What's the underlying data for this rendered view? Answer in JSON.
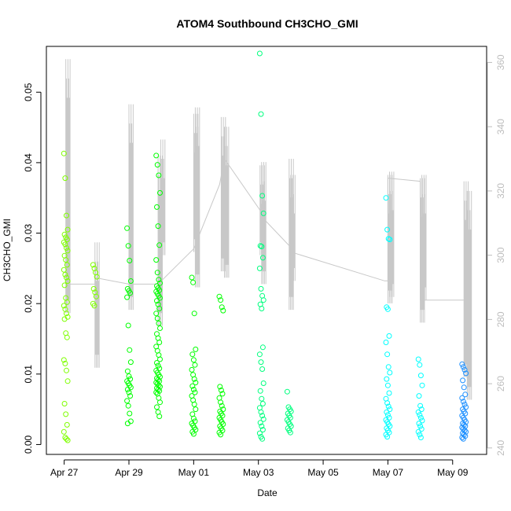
{
  "chart_data": {
    "type": "scatter",
    "title": "ATOM4 Southbound CH3CHO_GMI",
    "xlabel": "Date",
    "ylabel": "CH3CHO_GMI",
    "y2label": "",
    "x_tick_labels": [
      "Apr 27",
      "Apr 29",
      "May 01",
      "May 03",
      "May 05",
      "May 07",
      "May 09"
    ],
    "x_tick_days": [
      0,
      2,
      4,
      6,
      8,
      10,
      12
    ],
    "xlim_days": [
      -0.55,
      13.05
    ],
    "ylim": [
      -0.0014,
      0.0565
    ],
    "y_ticks": [
      0.0,
      0.01,
      0.02,
      0.03,
      0.04,
      0.05
    ],
    "y_tick_labels": [
      "0.00",
      "0.01",
      "0.02",
      "0.03",
      "0.04",
      "0.05"
    ],
    "y2lim": [
      238,
      365
    ],
    "y2_ticks": [
      240,
      260,
      280,
      300,
      320,
      340,
      360
    ],
    "y2_tick_labels": [
      "240",
      "260",
      "280",
      "300",
      "320",
      "340",
      "360"
    ],
    "grid": false,
    "legend": "none",
    "colors": {
      "marker_colors": [
        "#7fff00",
        "#00ff00",
        "#00ff7f",
        "#00ffff",
        "#1e90ff"
      ],
      "secondary_line": "#c8c8c8",
      "axis": "#000000",
      "right_axis": "#bdbdbd"
    },
    "series": [
      {
        "day": 0.05,
        "color": "#7fff00",
        "values": [
          0.0413,
          0.0378,
          0.0325,
          0.0305,
          0.0298,
          0.0294,
          0.0291,
          0.0287,
          0.0284,
          0.0279,
          0.0275,
          0.0268,
          0.0262,
          0.0255,
          0.0248,
          0.0241,
          0.0237,
          0.0232,
          0.0226,
          0.0208,
          0.0202,
          0.0197,
          0.0192,
          0.0186,
          0.0181,
          0.0178,
          0.0158,
          0.0152,
          0.012,
          0.0115,
          0.0105,
          0.009,
          0.0058,
          0.0043,
          0.0028,
          0.0018,
          0.001,
          0.0008,
          0.0006
        ]
      },
      {
        "day": 0.95,
        "color": "#7fff00",
        "values": [
          0.0255,
          0.025,
          0.0244,
          0.0238,
          0.0221,
          0.0216,
          0.021,
          0.02,
          0.0197
        ]
      },
      {
        "day": 2.0,
        "color": "#00ff00",
        "values": [
          0.0307,
          0.0282,
          0.0261,
          0.0232,
          0.0221,
          0.0218,
          0.0215,
          0.0209,
          0.0169,
          0.0134,
          0.0117,
          0.0104,
          0.0097,
          0.0093,
          0.009,
          0.0087,
          0.0084,
          0.0081,
          0.0078,
          0.0074,
          0.0069,
          0.0062,
          0.0055,
          0.0044,
          0.0033,
          0.003
        ]
      },
      {
        "day": 2.9,
        "color": "#00ff00",
        "values": [
          0.041,
          0.0397,
          0.0382,
          0.0357,
          0.0337,
          0.031,
          0.0283,
          0.0262,
          0.0244,
          0.0234,
          0.0229,
          0.0225,
          0.0222,
          0.0219,
          0.0217,
          0.0214,
          0.0211,
          0.0208,
          0.0204,
          0.0199,
          0.0193,
          0.0186,
          0.0179,
          0.0172,
          0.0165,
          0.0157,
          0.0151,
          0.0145,
          0.0139,
          0.0133,
          0.0127,
          0.0121,
          0.0116,
          0.0112,
          0.0108,
          0.0105,
          0.0102,
          0.0099,
          0.0096,
          0.0094,
          0.0092,
          0.009,
          0.0088,
          0.0086,
          0.0084,
          0.0082,
          0.008,
          0.0078,
          0.0076,
          0.0074,
          0.0072,
          0.0066,
          0.006,
          0.0053,
          0.0046,
          0.004
        ]
      },
      {
        "day": 4.0,
        "color": "#00ff00",
        "values": [
          0.0237,
          0.023,
          0.0186,
          0.0135,
          0.0128,
          0.012,
          0.0113,
          0.0106,
          0.0099,
          0.0093,
          0.0088,
          0.0083,
          0.0078,
          0.0074,
          0.0069,
          0.0063,
          0.0057,
          0.005,
          0.0043,
          0.0037,
          0.0033,
          0.003,
          0.0027,
          0.0024,
          0.0021,
          0.0018,
          0.0015
        ]
      },
      {
        "day": 4.85,
        "color": "#00ff00",
        "values": [
          0.021,
          0.0205,
          0.0195,
          0.019,
          0.0082,
          0.0077,
          0.0072,
          0.0066,
          0.006,
          0.0055,
          0.005,
          0.0047,
          0.0044,
          0.0041,
          0.0038,
          0.0035,
          0.0032,
          0.0029,
          0.0026,
          0.0023,
          0.002,
          0.0017,
          0.0014
        ]
      },
      {
        "day": 6.1,
        "color": "#00ff7f",
        "values": [
          0.0555,
          0.0469,
          0.0353,
          0.0328,
          0.0282,
          0.0281,
          0.0265,
          0.025,
          0.0221,
          0.0211,
          0.0205,
          0.0199,
          0.0193,
          0.0138,
          0.0128,
          0.0117,
          0.0107,
          0.0087,
          0.0076,
          0.0065,
          0.0058,
          0.0052,
          0.0046,
          0.0041,
          0.0036,
          0.0031,
          0.0026,
          0.0021,
          0.0016,
          0.0011,
          0.0008
        ]
      },
      {
        "day": 6.95,
        "color": "#00ff7f",
        "values": [
          0.0075,
          0.0053,
          0.005,
          0.0047,
          0.0044,
          0.0041,
          0.0038,
          0.0035,
          0.0032,
          0.0029,
          0.0026,
          0.0023,
          0.002,
          0.0017
        ]
      },
      {
        "day": 10.0,
        "color": "#00ffff",
        "values": [
          0.035,
          0.0305,
          0.0292,
          0.0291,
          0.0195,
          0.0192,
          0.0154,
          0.0145,
          0.0128,
          0.011,
          0.0102,
          0.0093,
          0.0084,
          0.0073,
          0.0065,
          0.0059,
          0.0054,
          0.005,
          0.0046,
          0.0042,
          0.0038,
          0.0035,
          0.0032,
          0.0029,
          0.0026,
          0.0023,
          0.002,
          0.0017,
          0.0014,
          0.0011
        ]
      },
      {
        "day": 11.0,
        "color": "#00ffff",
        "values": [
          0.0121,
          0.0113,
          0.0098,
          0.0084,
          0.0069,
          0.0055,
          0.005,
          0.0046,
          0.0042,
          0.0038,
          0.0034,
          0.003,
          0.0026,
          0.0022,
          0.0018,
          0.0014,
          0.001
        ]
      },
      {
        "day": 12.35,
        "color": "#1e90ff",
        "values": [
          0.0114,
          0.011,
          0.0106,
          0.0101,
          0.0091,
          0.0081,
          0.0071,
          0.0066,
          0.0061,
          0.0057,
          0.0053,
          0.005,
          0.0047,
          0.0044,
          0.0041,
          0.0038,
          0.0035,
          0.0032,
          0.003,
          0.0028,
          0.0026,
          0.0024,
          0.0022,
          0.002,
          0.0018,
          0.0016,
          0.0014,
          0.0012,
          0.001,
          0.0008
        ]
      }
    ],
    "secondary_line": {
      "y_axis": "right",
      "points": [
        [
          0.05,
          282
        ],
        [
          0.1,
          291
        ],
        [
          0.95,
          291
        ],
        [
          0.95,
          293
        ],
        [
          2.0,
          291
        ],
        [
          2.9,
          291
        ],
        [
          3.0,
          292
        ],
        [
          4.0,
          302
        ],
        [
          4.8,
          322
        ],
        [
          4.95,
          330
        ],
        [
          6.05,
          314
        ],
        [
          6.1,
          312
        ],
        [
          6.95,
          303
        ],
        [
          7.0,
          301
        ],
        [
          9.9,
          292
        ],
        [
          10.0,
          292
        ],
        [
          10.0,
          324
        ],
        [
          11.0,
          323
        ],
        [
          11.0,
          286
        ],
        [
          12.35,
          286
        ]
      ],
      "spikes": [
        [
          0.05,
          282,
          361
        ],
        [
          0.95,
          265,
          304
        ],
        [
          2.0,
          283,
          347
        ],
        [
          2.9,
          278,
          331
        ],
        [
          2.98,
          300,
          336
        ],
        [
          4.0,
          301,
          344
        ],
        [
          4.05,
          290,
          346
        ],
        [
          4.85,
          295,
          343
        ],
        [
          4.95,
          293,
          340
        ],
        [
          6.05,
          300,
          328
        ],
        [
          6.1,
          291,
          329
        ],
        [
          6.95,
          283,
          330
        ],
        [
          7.0,
          292,
          325
        ],
        [
          10.0,
          285,
          325
        ],
        [
          10.05,
          287,
          326
        ],
        [
          11.0,
          279,
          324
        ],
        [
          11.05,
          286,
          325
        ],
        [
          12.35,
          262,
          323
        ],
        [
          12.45,
          255,
          320
        ]
      ]
    }
  }
}
